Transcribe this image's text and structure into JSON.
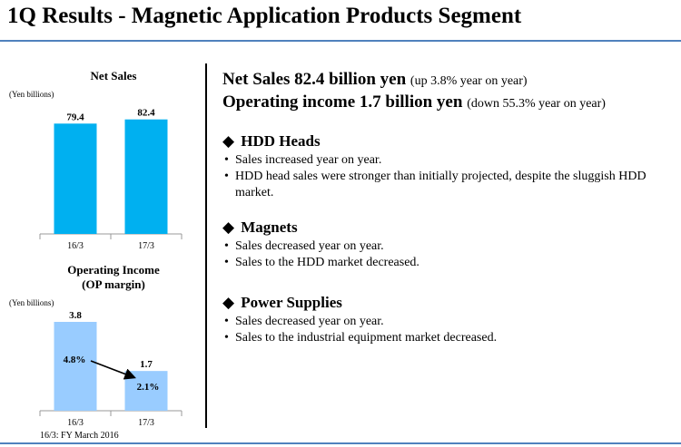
{
  "header": {
    "title": "1Q Results - Magnetic Application Products Segment"
  },
  "summary": {
    "net_sales": "Net Sales 82.4 billion yen",
    "net_sales_note": "(up 3.8% year on year)",
    "operating_income": "Operating income 1.7 billion yen",
    "operating_income_note": "(down 55.3% year on year)"
  },
  "sections": [
    {
      "icon": "diamond-icon",
      "title": "HDD Heads",
      "bullets": [
        "Sales increased year on year.",
        "HDD head sales were stronger than initially projected, despite the sluggish HDD market."
      ]
    },
    {
      "icon": "diamond-icon",
      "title": "Magnets",
      "bullets": [
        "Sales decreased year on year.",
        "Sales to the HDD market decreased."
      ]
    },
    {
      "icon": "diamond-icon",
      "title": "Power Supplies",
      "bullets": [
        "Sales decreased year on year.",
        "Sales to the industrial equipment market decreased."
      ]
    }
  ],
  "footnote": "16/3: FY March 2016",
  "colors": {
    "net_sales_bar": "#00b0f0",
    "op_income_bar": "#99ccff",
    "rule": "#4f81bd"
  },
  "chart_data": [
    {
      "type": "bar",
      "title": "Net Sales",
      "unit": "(Yen billions)",
      "categories": [
        "16/3",
        "17/3"
      ],
      "values": [
        79.4,
        82.4
      ],
      "value_labels": [
        "79.4",
        "82.4"
      ],
      "ylim": [
        0,
        92
      ]
    },
    {
      "type": "bar",
      "title": "Operating Income",
      "subtitle": "(OP margin)",
      "unit": "(Yen billions)",
      "categories": [
        "16/3",
        "17/3"
      ],
      "values": [
        3.8,
        1.7
      ],
      "value_labels": [
        "3.8",
        "1.7"
      ],
      "margins": [
        "4.8%",
        "2.1%"
      ],
      "ylim": [
        0,
        3.8
      ]
    }
  ]
}
